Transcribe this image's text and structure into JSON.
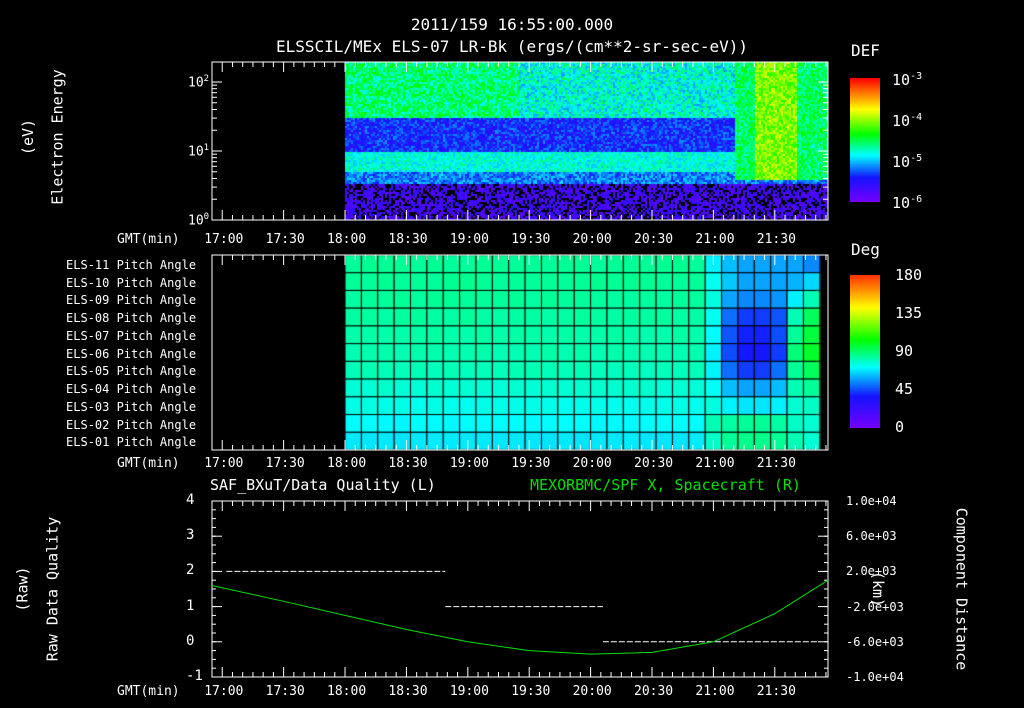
{
  "header": {
    "timestamp": "2011/159 16:55:00.000",
    "spectrogram_title": "ELSSCIL/MEx ELS-07 LR-Bk  (ergs/(cm**2-sr-sec-eV))"
  },
  "colors": {
    "background": "#000000",
    "foreground": "#ffffff",
    "x_component": "#00e000"
  },
  "chart_data": [
    {
      "type": "heatmap",
      "name": "electron-energy-spectrogram",
      "ylabel": [
        "Electron Energy",
        "(eV)"
      ],
      "xlabel": "GMT(min)",
      "x_range_minutes_from": "16:55",
      "xlim_min": [
        0,
        301
      ],
      "xticks": [
        "17:00",
        "17:30",
        "18:00",
        "18:30",
        "19:00",
        "19:30",
        "20:00",
        "20:30",
        "21:00",
        "21:30"
      ],
      "ylim": [
        1,
        186
      ],
      "yscale": "log",
      "yticks": [
        {
          "base": "10",
          "exp": "0"
        },
        {
          "base": "10",
          "exp": "1"
        },
        {
          "base": "10",
          "exp": "2"
        }
      ],
      "data_start": "18:00",
      "colorbar": {
        "label": "DEF",
        "scale": "log",
        "range": [
          1e-06,
          0.001
        ],
        "ticks": [
          {
            "base": "10",
            "exp": "-3"
          },
          {
            "base": "10",
            "exp": "-4"
          },
          {
            "base": "10",
            "exp": "-5"
          },
          {
            "base": "10",
            "exp": "-6"
          }
        ]
      },
      "features": [
        {
          "desc": "high-energy band 30-180 eV",
          "from_min": 65,
          "to_min": 255,
          "log_def": -4.6
        },
        {
          "desc": "low-energy band ~6-9 eV",
          "from_min": 65,
          "to_min": 255,
          "log_def": -5.0
        },
        {
          "desc": "boundary crossing, enhanced 4-180 eV",
          "from_min": 255,
          "to_min": 301,
          "log_def": -4.3
        }
      ]
    },
    {
      "type": "heatmap",
      "name": "pitch-angle-grid",
      "xlabel": "GMT(min)",
      "xticks": [
        "17:00",
        "17:30",
        "18:00",
        "18:30",
        "19:00",
        "19:30",
        "20:00",
        "20:30",
        "21:00",
        "21:30"
      ],
      "rows": [
        "ELS-11 Pitch Angle",
        "ELS-10 Pitch Angle",
        "ELS-09 Pitch Angle",
        "ELS-08 Pitch Angle",
        "ELS-07 Pitch Angle",
        "ELS-06 Pitch Angle",
        "ELS-05 Pitch Angle",
        "ELS-04 Pitch Angle",
        "ELS-03 Pitch Angle",
        "ELS-02 Pitch Angle",
        "ELS-01 Pitch Angle"
      ],
      "column_minutes": 8,
      "data_start_min": 65,
      "columns": 29,
      "row_base_deg": [
        100,
        100,
        99,
        98,
        97,
        96,
        94,
        90,
        86,
        82,
        78
      ],
      "late_columns_deg": [
        [
          80,
          70,
          65,
          65,
          65,
          65,
          60
        ],
        [
          85,
          72,
          65,
          65,
          65,
          68,
          75
        ],
        [
          88,
          65,
          60,
          60,
          62,
          80,
          95
        ],
        [
          85,
          55,
          45,
          45,
          50,
          95,
          110
        ],
        [
          82,
          50,
          40,
          40,
          48,
          100,
          115
        ],
        [
          80,
          48,
          38,
          38,
          45,
          105,
          118
        ],
        [
          80,
          55,
          45,
          45,
          55,
          100,
          110
        ],
        [
          84,
          70,
          65,
          65,
          70,
          95,
          100
        ],
        [
          88,
          80,
          78,
          78,
          80,
          90,
          92
        ],
        [
          95,
          98,
          100,
          100,
          98,
          92,
          90
        ],
        [
          92,
          100,
          102,
          102,
          100,
          95,
          90
        ]
      ],
      "colorbar": {
        "label": "Deg",
        "range": [
          0,
          180
        ],
        "ticks": [
          "180",
          "135",
          "90",
          "45",
          "0"
        ]
      }
    },
    {
      "type": "line",
      "name": "data-quality-and-x-component",
      "left_title": "SAF_BXuT/Data Quality (L)",
      "right_title": "MEXORBMC/SPF X, Spacecraft (R)",
      "ylabel_left": [
        "Raw Data Quality",
        "(Raw)"
      ],
      "ylabel_right": [
        "Component Distance",
        "(km)"
      ],
      "xlabel": "GMT(min)",
      "xticks": [
        "17:00",
        "17:30",
        "18:00",
        "18:30",
        "19:00",
        "19:30",
        "20:00",
        "20:30",
        "21:00",
        "21:30"
      ],
      "ylim_left": [
        -1,
        4
      ],
      "yticks_left": [
        "4",
        "3",
        "2",
        "1",
        "0",
        "-1"
      ],
      "ylim_right": [
        -10000,
        10000
      ],
      "yticks_right": [
        "1.0e+04",
        "6.0e+03",
        "2.0e+03",
        "-2.0e+03",
        "-6.0e+03",
        "-1.0e+04"
      ],
      "series": [
        {
          "name": "Data Quality",
          "axis": "left",
          "color": "#ffffff",
          "segments": [
            {
              "from_min": 7,
              "to_min": 114,
              "value": 2
            },
            {
              "from_min": 114,
              "to_min": 191,
              "value": 1
            },
            {
              "from_min": 191,
              "to_min": 296,
              "value": 0
            }
          ]
        },
        {
          "name": "SPF X",
          "axis": "right",
          "color": "#00e000",
          "x_min": [
            0,
            35,
            65,
            95,
            125,
            155,
            185,
            215,
            245,
            275,
            301
          ],
          "values": [
            400,
            -1400,
            -3000,
            -4600,
            -6000,
            -7000,
            -7400,
            -7200,
            -6000,
            -2800,
            1000
          ]
        }
      ]
    }
  ]
}
